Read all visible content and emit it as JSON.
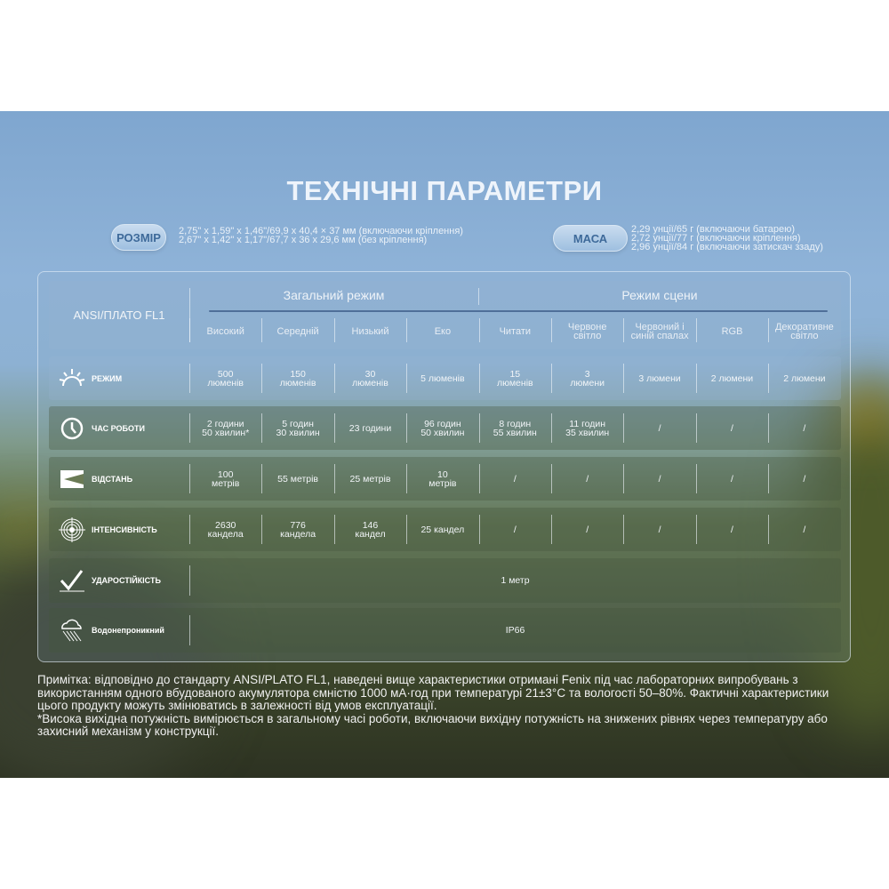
{
  "title": "ТЕХНІЧНІ ПАРАМЕТРИ",
  "size": {
    "label": "РОЗМІР",
    "lines": [
      "2,75\" x 1,59\" x 1,46\"/69,9 x 40,4 × 37 мм (включаючи кріплення)",
      "2,67\" x 1,42\" x 1,17\"/67,7 x 36 x 29,6 мм (без кріплення)"
    ]
  },
  "mass": {
    "label": "МАСА",
    "lines": [
      "2,29 унції/65 г (включаючи батарею)",
      "2,72 унції/77 г (включаючи кріплення)",
      "2,96 унції/84 г (включаючи затискач ззаду)"
    ]
  },
  "table": {
    "standard": "ANSI/ПЛАТО FL1",
    "groups": [
      "Загальний режим",
      "Режим сцени"
    ],
    "columns": [
      "Високий",
      "Середній",
      "Низький",
      "Еко",
      "Читати",
      "Червоне\nсвітло",
      "Червоний і\nсиній спалах",
      "RGB",
      "Декоративне\nсвітло"
    ],
    "rows": [
      {
        "label": "РЕЖИМ",
        "icon": "brightness-icon",
        "values": [
          "500\nлюменів",
          "150\nлюменів",
          "30\nлюменів",
          "5 люменів",
          "15\nлюменів",
          "3\nлюмени",
          "3 люмени",
          "2 люмени",
          "2 люмени"
        ]
      },
      {
        "label": "ЧАС РОБОТИ",
        "icon": "clock-icon",
        "values": [
          "2 години\n50 хвилин*",
          "5 годин\n30 хвилин",
          "23 години",
          "96 годин\n50 хвилин",
          "8 годин\n55 хвилин",
          "11 годин\n35 хвилин",
          "/",
          "/",
          "/"
        ]
      },
      {
        "label": "ВІДСТАНЬ",
        "icon": "beam-distance-icon",
        "values": [
          "100\nметрів",
          "55 метрів",
          "25 метрів",
          "10\nметрів",
          "/",
          "/",
          "/",
          "/",
          "/"
        ]
      },
      {
        "label": "ІНТЕНСИВНІСТЬ",
        "icon": "target-icon",
        "values": [
          "2630\nкандела",
          "776\nкандела",
          "146\nкандел",
          "25 кандел",
          "/",
          "/",
          "/",
          "/",
          "/"
        ]
      },
      {
        "label": "УДАРОСТІЙКІСТЬ",
        "icon": "impact-icon",
        "merged": "1 метр"
      },
      {
        "label": "Водонепроникний",
        "icon": "rain-icon",
        "merged": "IP66"
      }
    ]
  },
  "note": [
    "Примітка: відповідно до стандарту ANSI/PLATO FL1, наведені вище характеристики отримані Fenix під час лабораторних випробувань з використанням одного вбудованого акумулятора ємністю 1000 мА·год при температурі 21±3°C та вологості 50–80%. Фактичні характеристики цього продукту можуть змінюватись в залежності від умов експлуатації.",
    "*Висока вихідна потужність вимірюється в загальному часі роботи, включаючи вихідну потужність на знижених рівнях через температуру або захисний механізм у конструкції."
  ]
}
